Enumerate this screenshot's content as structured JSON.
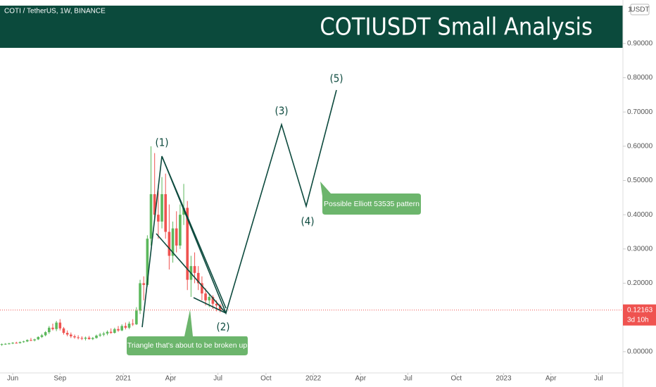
{
  "chart_data": {
    "type": "candlestick",
    "symbol": "COTI / TetherUS, 1W, BINANCE",
    "title": "COTIUSDT Small Analysis",
    "scale_mode": "1",
    "currency": "USDT",
    "x": [
      -3,
      -2,
      -1,
      0,
      1,
      2,
      3,
      4,
      5,
      6,
      7,
      8,
      9,
      10,
      11,
      12,
      13,
      14,
      15,
      16,
      17,
      18,
      19,
      20,
      21,
      22,
      23,
      24,
      25,
      26,
      27,
      28,
      29,
      30,
      31,
      32,
      33,
      34,
      35,
      36,
      37,
      38,
      39,
      40,
      41,
      42,
      43,
      44,
      45,
      46,
      47,
      48,
      49,
      50,
      51,
      52,
      53,
      54,
      55,
      56,
      57
    ],
    "open": [
      0.02,
      0.022,
      0.023,
      0.024,
      0.026,
      0.025,
      0.028,
      0.03,
      0.034,
      0.033,
      0.036,
      0.043,
      0.048,
      0.057,
      0.07,
      0.066,
      0.085,
      0.068,
      0.055,
      0.05,
      0.045,
      0.042,
      0.04,
      0.038,
      0.041,
      0.037,
      0.04,
      0.047,
      0.05,
      0.053,
      0.058,
      0.055,
      0.066,
      0.062,
      0.075,
      0.07,
      0.082,
      0.08,
      0.12,
      0.2,
      0.195,
      0.33,
      0.46,
      0.4,
      0.38,
      0.46,
      0.35,
      0.28,
      0.36,
      0.31,
      0.4,
      0.42,
      0.21,
      0.25,
      0.23,
      0.2,
      0.17,
      0.15,
      0.16,
      0.14,
      0.135
    ],
    "high": [
      0.024,
      0.025,
      0.026,
      0.028,
      0.029,
      0.03,
      0.032,
      0.036,
      0.04,
      0.038,
      0.045,
      0.052,
      0.06,
      0.075,
      0.082,
      0.09,
      0.095,
      0.072,
      0.062,
      0.056,
      0.05,
      0.048,
      0.045,
      0.044,
      0.046,
      0.043,
      0.05,
      0.055,
      0.058,
      0.062,
      0.068,
      0.07,
      0.075,
      0.08,
      0.085,
      0.088,
      0.095,
      0.13,
      0.21,
      0.22,
      0.34,
      0.6,
      0.58,
      0.47,
      0.51,
      0.52,
      0.43,
      0.38,
      0.41,
      0.43,
      0.49,
      0.44,
      0.28,
      0.29,
      0.25,
      0.22,
      0.185,
      0.17,
      0.165,
      0.15,
      0.14
    ],
    "low": [
      0.017,
      0.02,
      0.021,
      0.022,
      0.024,
      0.024,
      0.026,
      0.028,
      0.031,
      0.03,
      0.034,
      0.04,
      0.045,
      0.052,
      0.062,
      0.06,
      0.062,
      0.05,
      0.045,
      0.04,
      0.038,
      0.036,
      0.034,
      0.033,
      0.035,
      0.034,
      0.038,
      0.043,
      0.045,
      0.048,
      0.052,
      0.053,
      0.058,
      0.06,
      0.065,
      0.066,
      0.075,
      0.078,
      0.11,
      0.15,
      0.19,
      0.31,
      0.38,
      0.33,
      0.36,
      0.33,
      0.24,
      0.26,
      0.29,
      0.3,
      0.37,
      0.18,
      0.16,
      0.2,
      0.18,
      0.15,
      0.135,
      0.13,
      0.125,
      0.118,
      0.115
    ],
    "close": [
      0.022,
      0.023,
      0.024,
      0.026,
      0.025,
      0.028,
      0.03,
      0.034,
      0.033,
      0.036,
      0.043,
      0.048,
      0.057,
      0.07,
      0.066,
      0.085,
      0.068,
      0.055,
      0.05,
      0.045,
      0.042,
      0.04,
      0.038,
      0.041,
      0.037,
      0.04,
      0.047,
      0.05,
      0.053,
      0.058,
      0.055,
      0.066,
      0.062,
      0.075,
      0.07,
      0.082,
      0.08,
      0.12,
      0.2,
      0.195,
      0.33,
      0.46,
      0.4,
      0.38,
      0.46,
      0.35,
      0.28,
      0.36,
      0.31,
      0.4,
      0.42,
      0.21,
      0.25,
      0.23,
      0.2,
      0.17,
      0.15,
      0.16,
      0.14,
      0.135,
      0.122
    ],
    "up_color": "#5cb85c",
    "down_color": "#ef5350",
    "xlim": [
      -3.5,
      167.7
    ],
    "xticks": [
      {
        "value": 0,
        "label": "Jun"
      },
      {
        "value": 13,
        "label": "Sep"
      },
      {
        "value": 30.4,
        "label": "2021"
      },
      {
        "value": 43.4,
        "label": "Apr"
      },
      {
        "value": 56.4,
        "label": "Jul"
      },
      {
        "value": 69.6,
        "label": "Oct"
      },
      {
        "value": 82.6,
        "label": "2022"
      },
      {
        "value": 95.6,
        "label": "Apr"
      },
      {
        "value": 108.6,
        "label": "Jul"
      },
      {
        "value": 121.9,
        "label": "Oct"
      },
      {
        "value": 134.9,
        "label": "2023"
      },
      {
        "value": 147.9,
        "label": "Apr"
      },
      {
        "value": 161,
        "label": "Jul"
      }
    ],
    "ylim": [
      -0.062,
      1.027
    ],
    "yticks": [
      {
        "value": 0,
        "label": "0.00000"
      },
      {
        "value": 0.1,
        "label": "0.10000"
      },
      {
        "value": 0.2,
        "label": "0.20000"
      },
      {
        "value": 0.3,
        "label": "0.30000"
      },
      {
        "value": 0.4,
        "label": "0.40000"
      },
      {
        "value": 0.5,
        "label": "0.50000"
      },
      {
        "value": 0.6,
        "label": "0.60000"
      },
      {
        "value": 0.7,
        "label": "0.70000"
      },
      {
        "value": 0.8,
        "label": "0.80000"
      },
      {
        "value": 0.9,
        "label": "0.90000"
      }
    ],
    "last_price": 0.12163,
    "countdown": "3d 10h",
    "wave_labels": [
      "(1)",
      "(2)",
      "(3)",
      "(4)",
      "(5)"
    ],
    "annotations": [
      "Triangle that's about to be broken up",
      "Possible Elliott 53535 pattern"
    ]
  }
}
